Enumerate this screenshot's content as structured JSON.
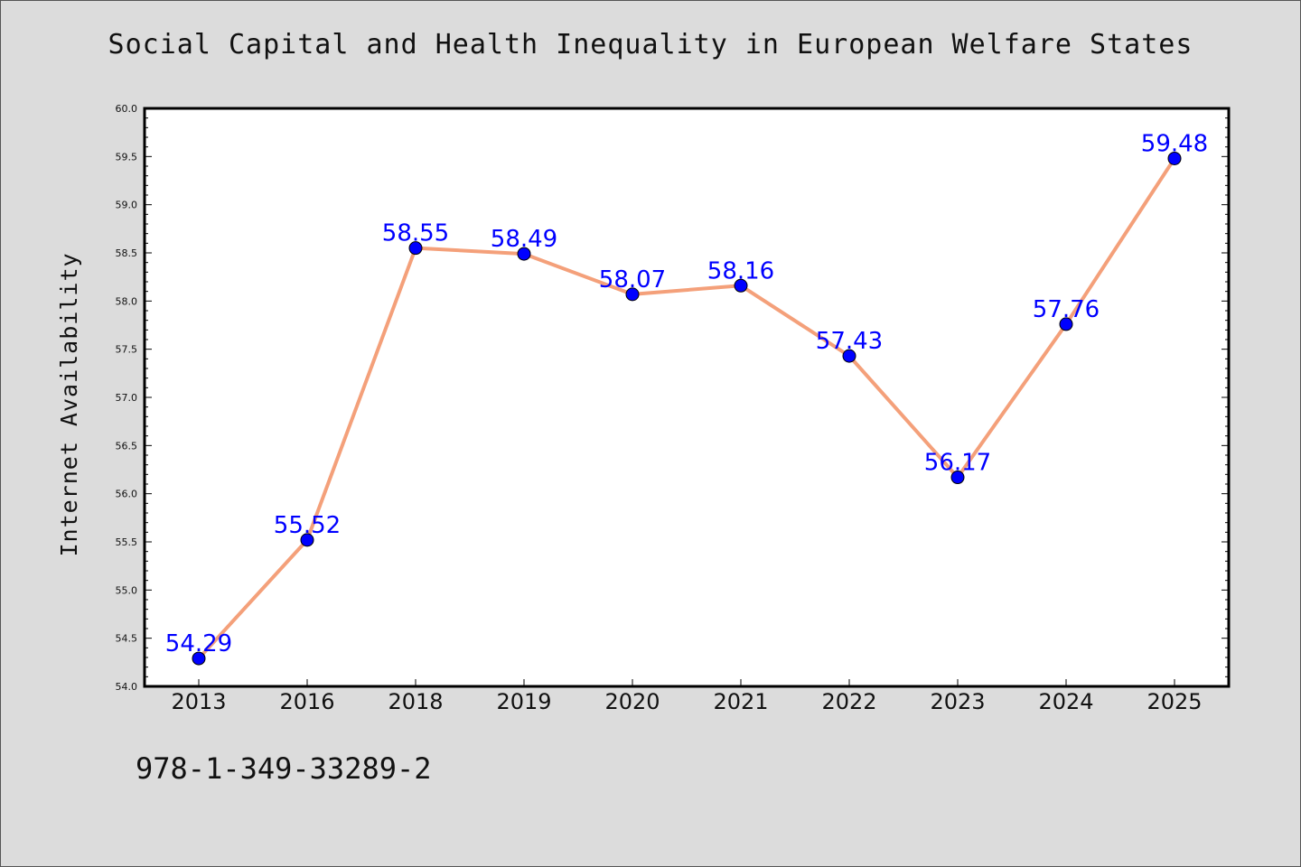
{
  "chart_data": {
    "type": "line",
    "title": "Social Capital and Health Inequality in European Welfare States",
    "xlabel": "",
    "ylabel": "Internet Availability",
    "categories": [
      "2013",
      "2016",
      "2018",
      "2019",
      "2020",
      "2021",
      "2022",
      "2023",
      "2024",
      "2025"
    ],
    "series": [
      {
        "values": [
          54.29,
          55.52,
          58.55,
          58.49,
          58.07,
          58.16,
          57.43,
          56.17,
          57.76,
          59.48
        ],
        "labels": [
          "54.29",
          "55.52",
          "58.55",
          "58.49",
          "58.07",
          "58.16",
          "57.43",
          "56.17",
          "57.76",
          "59.48"
        ],
        "line_color": "#f4a07a",
        "marker_color": "#0000ff"
      }
    ],
    "ylim": [
      54.0,
      60.0
    ],
    "yticks": [
      "54.0",
      "54.5",
      "55.0",
      "55.5",
      "56.0",
      "56.5",
      "57.0",
      "57.5",
      "58.0",
      "58.5",
      "59.0",
      "59.5",
      "60.0"
    ],
    "grid": false,
    "data_label_color": "#0000ff",
    "background": "#dcdcdc",
    "plot_background": "#ffffff"
  },
  "footer": {
    "isbn": "978-1-349-33289-2"
  }
}
